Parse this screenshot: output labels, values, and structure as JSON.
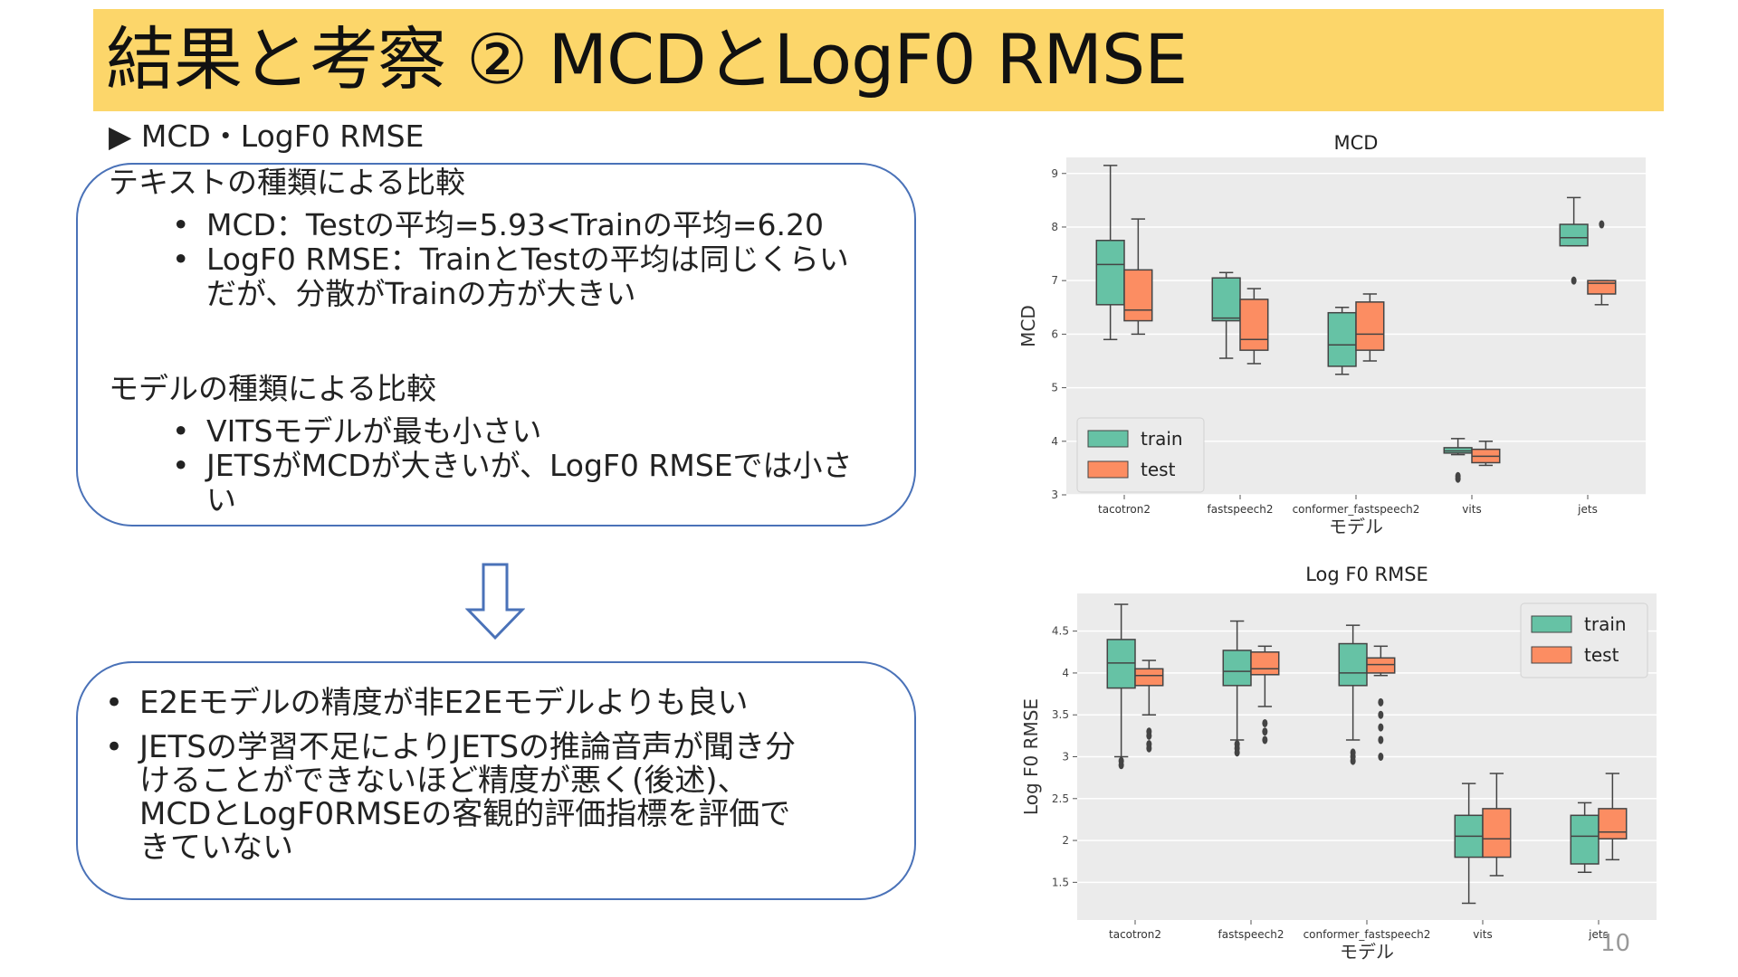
{
  "slide": {
    "title": "結果と考察 ② MCDとLogF0 RMSE",
    "section_heading": "▶ MCD・LogF0 RMSE",
    "page_number": "10"
  },
  "box1": {
    "group1_title": "テキストの種類による比較",
    "group1_items": [
      [
        "MCD：Testの平均=5.93<Trainの平均=6.20"
      ],
      [
        "LogF0 RMSE：TrainとTestの平均は同じくらい",
        "だが、分散がTrainの方が大きい"
      ]
    ],
    "group2_title": "モデルの種類による比較",
    "group2_items": [
      [
        "VITSモデルが最も小さい"
      ],
      [
        "JETSがMCDが大きいが、LogF0 RMSEでは小さ",
        "い"
      ]
    ]
  },
  "box2": {
    "items": [
      [
        "E2Eモデルの精度が非E2Eモデルよりも良い"
      ],
      [
        "JETSの学習不足によりJETSの推論音声が聞き分",
        "けることができないほど精度が悪く(後述)、",
        "MCDとLogF0RMSEの客観的評価指標を評価で",
        "きていない"
      ]
    ]
  },
  "colors": {
    "train": "#66c2a5",
    "test": "#fc8d62",
    "accent_bar": "#fcd66a",
    "box_border": "#4a72b8",
    "plot_bg": "#ebebeb"
  },
  "icons": {
    "arrow": "down-arrow-outline-icon"
  },
  "chart_data": [
    {
      "type": "box",
      "title": "MCD",
      "xlabel": "モデル",
      "ylabel": "MCD",
      "categories": [
        "tacotron2",
        "fastspeech2",
        "conformer_fastspeech2",
        "vits",
        "jets"
      ],
      "ylim": [
        3,
        9.3
      ],
      "yticks": [
        3,
        4,
        5,
        6,
        7,
        8,
        9
      ],
      "grid": true,
      "legend_position": "lower-left",
      "series": [
        {
          "name": "train",
          "boxes": [
            {
              "min": 5.9,
              "q1": 6.55,
              "median": 7.3,
              "q3": 7.75,
              "max": 9.15,
              "outliers": []
            },
            {
              "min": 5.55,
              "q1": 6.25,
              "median": 6.3,
              "q3": 7.05,
              "max": 7.15,
              "outliers": []
            },
            {
              "min": 5.25,
              "q1": 5.4,
              "median": 5.8,
              "q3": 6.4,
              "max": 6.5,
              "outliers": []
            },
            {
              "min": 3.75,
              "q1": 3.78,
              "median": 3.82,
              "q3": 3.88,
              "max": 4.05,
              "outliers": [
                3.3,
                3.35
              ]
            },
            {
              "min": 7.65,
              "q1": 7.65,
              "median": 7.8,
              "q3": 8.05,
              "max": 8.55,
              "outliers": [
                7.0
              ]
            }
          ]
        },
        {
          "name": "test",
          "boxes": [
            {
              "min": 6.0,
              "q1": 6.25,
              "median": 6.45,
              "q3": 7.2,
              "max": 8.15,
              "outliers": []
            },
            {
              "min": 5.45,
              "q1": 5.7,
              "median": 5.9,
              "q3": 6.65,
              "max": 6.85,
              "outliers": []
            },
            {
              "min": 5.5,
              "q1": 5.7,
              "median": 6.0,
              "q3": 6.6,
              "max": 6.75,
              "outliers": []
            },
            {
              "min": 3.55,
              "q1": 3.6,
              "median": 3.72,
              "q3": 3.85,
              "max": 4.0,
              "outliers": []
            },
            {
              "min": 6.55,
              "q1": 6.75,
              "median": 6.95,
              "q3": 7.0,
              "max": 7.0,
              "outliers": [
                8.05
              ]
            }
          ]
        }
      ]
    },
    {
      "type": "box",
      "title": "Log F0 RMSE",
      "xlabel": "モデル",
      "ylabel": "Log F0 RMSE",
      "categories": [
        "tacotron2",
        "fastspeech2",
        "conformer_fastspeech2",
        "vits",
        "jets"
      ],
      "ylim": [
        1.05,
        4.95
      ],
      "yticks": [
        1.5,
        2.0,
        2.5,
        3.0,
        3.5,
        4.0,
        4.5
      ],
      "grid": true,
      "legend_position": "upper-right",
      "series": [
        {
          "name": "train",
          "boxes": [
            {
              "min": 3.0,
              "q1": 3.82,
              "median": 4.12,
              "q3": 4.4,
              "max": 4.82,
              "outliers": [
                2.9,
                2.95
              ]
            },
            {
              "min": 3.2,
              "q1": 3.85,
              "median": 4.02,
              "q3": 4.27,
              "max": 4.62,
              "outliers": [
                3.05,
                3.1,
                3.15
              ]
            },
            {
              "min": 3.2,
              "q1": 3.85,
              "median": 4.0,
              "q3": 4.35,
              "max": 4.57,
              "outliers": [
                2.95,
                3.0,
                3.05
              ]
            },
            {
              "min": 1.25,
              "q1": 1.8,
              "median": 2.05,
              "q3": 2.3,
              "max": 2.68,
              "outliers": []
            },
            {
              "min": 1.62,
              "q1": 1.72,
              "median": 2.05,
              "q3": 2.3,
              "max": 2.45,
              "outliers": []
            }
          ]
        },
        {
          "name": "test",
          "boxes": [
            {
              "min": 3.5,
              "q1": 3.85,
              "median": 3.97,
              "q3": 4.05,
              "max": 4.15,
              "outliers": [
                3.1,
                3.15,
                3.25,
                3.3
              ]
            },
            {
              "min": 3.6,
              "q1": 3.98,
              "median": 4.05,
              "q3": 4.25,
              "max": 4.32,
              "outliers": [
                3.2,
                3.3,
                3.4
              ]
            },
            {
              "min": 3.97,
              "q1": 4.0,
              "median": 4.1,
              "q3": 4.18,
              "max": 4.32,
              "outliers": [
                3.0,
                3.2,
                3.35,
                3.5,
                3.65
              ]
            },
            {
              "min": 1.58,
              "q1": 1.8,
              "median": 2.02,
              "q3": 2.38,
              "max": 2.8,
              "outliers": []
            },
            {
              "min": 1.77,
              "q1": 2.02,
              "median": 2.1,
              "q3": 2.38,
              "max": 2.8,
              "outliers": []
            }
          ]
        }
      ]
    }
  ]
}
